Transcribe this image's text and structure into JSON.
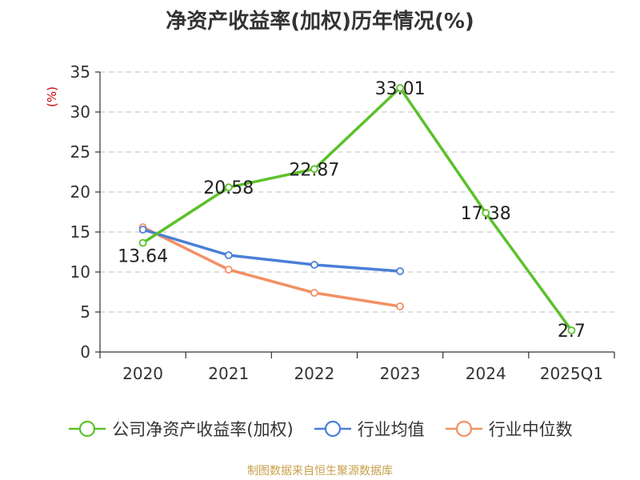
{
  "chart_data": {
    "type": "line",
    "title": "净资产收益率(加权)历年情况(%)",
    "ylabel": "(%)",
    "xlabel": "",
    "categories": [
      "2020",
      "2021",
      "2022",
      "2023",
      "2024",
      "2025Q1"
    ],
    "ylim": [
      0,
      35
    ],
    "yticks": [
      0,
      5,
      10,
      15,
      20,
      25,
      30,
      35
    ],
    "grid": true,
    "legend_position": "bottom",
    "series": [
      {
        "name": "公司净资产收益率(加权)",
        "color": "#5cc12a",
        "values": [
          13.64,
          20.58,
          22.87,
          33.01,
          17.38,
          2.7
        ],
        "labels": [
          "13.64",
          "20.58",
          "22.87",
          "33.01",
          "17.38",
          "2.7"
        ]
      },
      {
        "name": "行业均值",
        "color": "#4a7fd6",
        "values": [
          15.3,
          12.1,
          10.9,
          10.1,
          null,
          null
        ]
      },
      {
        "name": "行业中位数",
        "color": "#f39063",
        "values": [
          15.6,
          10.3,
          7.4,
          5.7,
          null,
          null
        ]
      }
    ]
  },
  "source_text": "制图数据来自恒生聚源数据库"
}
